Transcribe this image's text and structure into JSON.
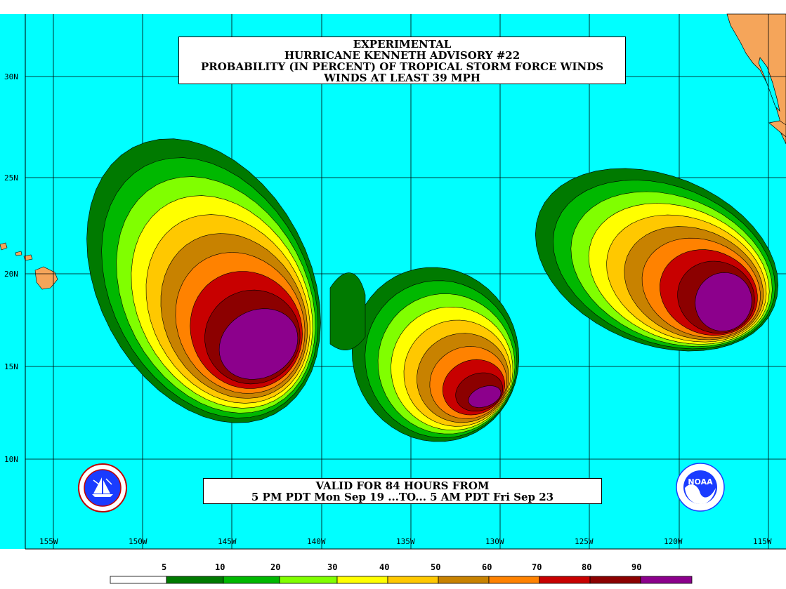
{
  "title": {
    "line1": "EXPERIMENTAL",
    "line2": "HURRICANE KENNETH ADVISORY #22",
    "line3": "PROBABILITY (IN PERCENT) OF TROPICAL STORM FORCE WINDS",
    "line4": "WINDS AT LEAST 39 MPH"
  },
  "valid": {
    "line1": "VALID FOR 84 HOURS FROM",
    "line2": "5 PM PDT Mon Sep 19 ...TO... 5 AM PDT Fri Sep 23"
  },
  "lat_labels": [
    "30N",
    "25N",
    "20N",
    "15N",
    "10N"
  ],
  "lon_labels": [
    "155W",
    "150W",
    "145W",
    "140W",
    "135W",
    "130W",
    "125W",
    "120W",
    "115W"
  ],
  "legend": {
    "thresholds": [
      "5",
      "10",
      "20",
      "30",
      "40",
      "50",
      "60",
      "70",
      "80",
      "90"
    ],
    "colors": [
      "#ffffff",
      "#007a00",
      "#00b800",
      "#80ff00",
      "#ffff00",
      "#ffc800",
      "#c88200",
      "#ff8200",
      "#c80000",
      "#8c0000",
      "#8c008c"
    ]
  },
  "colors": {
    "ocean": "#00ffff",
    "land": "#f5a55a",
    "grid": "#000000"
  },
  "logos": {
    "left": "nws-logo",
    "right": "noaa-logo"
  }
}
